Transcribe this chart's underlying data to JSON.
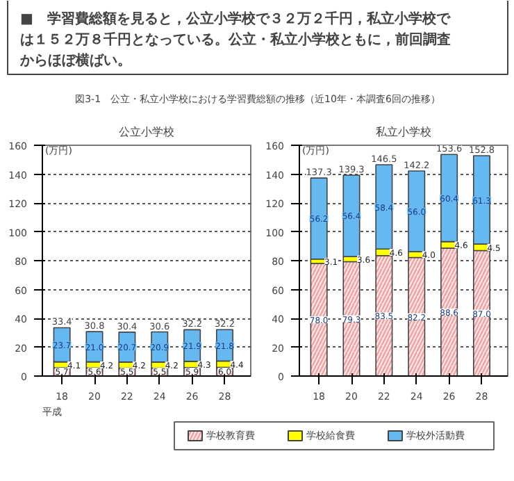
{
  "chart_data": [
    {
      "type": "bar",
      "title": "公立小学校",
      "annotations": [
        "■　学習費総額を見ると，公立小学校で３２万２千円，私立小学校では１５２万８千円となっている。公立・私立小学校ともに，前回調査からほぼ横ばい。",
        "図3-1　公立・私立小学校における学習費総額の推移（近10年・本調査6回の推移）"
      ],
      "xlabel": "平成",
      "ylabel": "(万円)",
      "categories": [
        "18",
        "20",
        "22",
        "24",
        "26",
        "28"
      ],
      "stacked": true,
      "ylim": [
        0,
        160
      ],
      "yticks": [
        0,
        20,
        40,
        60,
        80,
        100,
        120,
        140,
        160
      ],
      "grid": "y",
      "legend": "bottom",
      "series": [
        {
          "name": "学校教育費",
          "color": "#fbe3e3",
          "values": [
            5.7,
            5.6,
            5.5,
            5.5,
            5.9,
            6.0
          ],
          "value_labels": [
            "5.7",
            "5.6",
            "5.5",
            "5.5",
            "5.9",
            "6.0"
          ]
        },
        {
          "name": "学校給食費",
          "color": "#ffff00",
          "values": [
            4.1,
            4.2,
            4.2,
            4.2,
            4.3,
            4.4
          ],
          "value_labels": [
            "4.1",
            "4.2",
            "4.2",
            "4.2",
            "4.3",
            "4.4"
          ]
        },
        {
          "name": "学校外活動費",
          "color": "#66b8f0",
          "values": [
            23.7,
            21.0,
            20.7,
            20.9,
            21.9,
            21.8
          ],
          "value_labels": [
            "23.7",
            "21.0",
            "20.7",
            "20.9",
            "21.9",
            "21.8"
          ]
        }
      ],
      "totals": [
        "33.4",
        "30.8",
        "30.4",
        "30.6",
        "32.2",
        "32.2"
      ]
    },
    {
      "type": "bar",
      "title": "私立小学校",
      "ylabel": "(万円)",
      "categories": [
        "18",
        "20",
        "22",
        "24",
        "26",
        "28"
      ],
      "stacked": true,
      "ylim": [
        0,
        160
      ],
      "yticks": [
        0,
        20,
        40,
        60,
        80,
        100,
        120,
        140,
        160
      ],
      "grid": "y",
      "series": [
        {
          "color": "#fbe3e3",
          "values": [
            78.0,
            79.3,
            83.5,
            82.2,
            88.6,
            87.0
          ],
          "value_labels": [
            "78.0",
            "79.3",
            "83.5",
            "82.2",
            "88.6",
            "87.0"
          ]
        },
        {
          "color": "#ffff00",
          "values": [
            3.1,
            3.6,
            4.6,
            4.0,
            4.6,
            4.5
          ],
          "value_labels": [
            "3.1",
            "3.6",
            "4.6",
            "4.0",
            "4.6",
            "4.5"
          ]
        },
        {
          "color": "#66b8f0",
          "values": [
            56.2,
            56.4,
            58.4,
            56.0,
            60.4,
            61.3
          ],
          "value_labels": [
            "56.2",
            "56.4",
            "58.4",
            "56.0",
            "60.4",
            "61.3"
          ]
        }
      ],
      "totals": [
        "137.3",
        "139.3",
        "146.5",
        "142.2",
        "153.6",
        "152.8"
      ]
    }
  ]
}
